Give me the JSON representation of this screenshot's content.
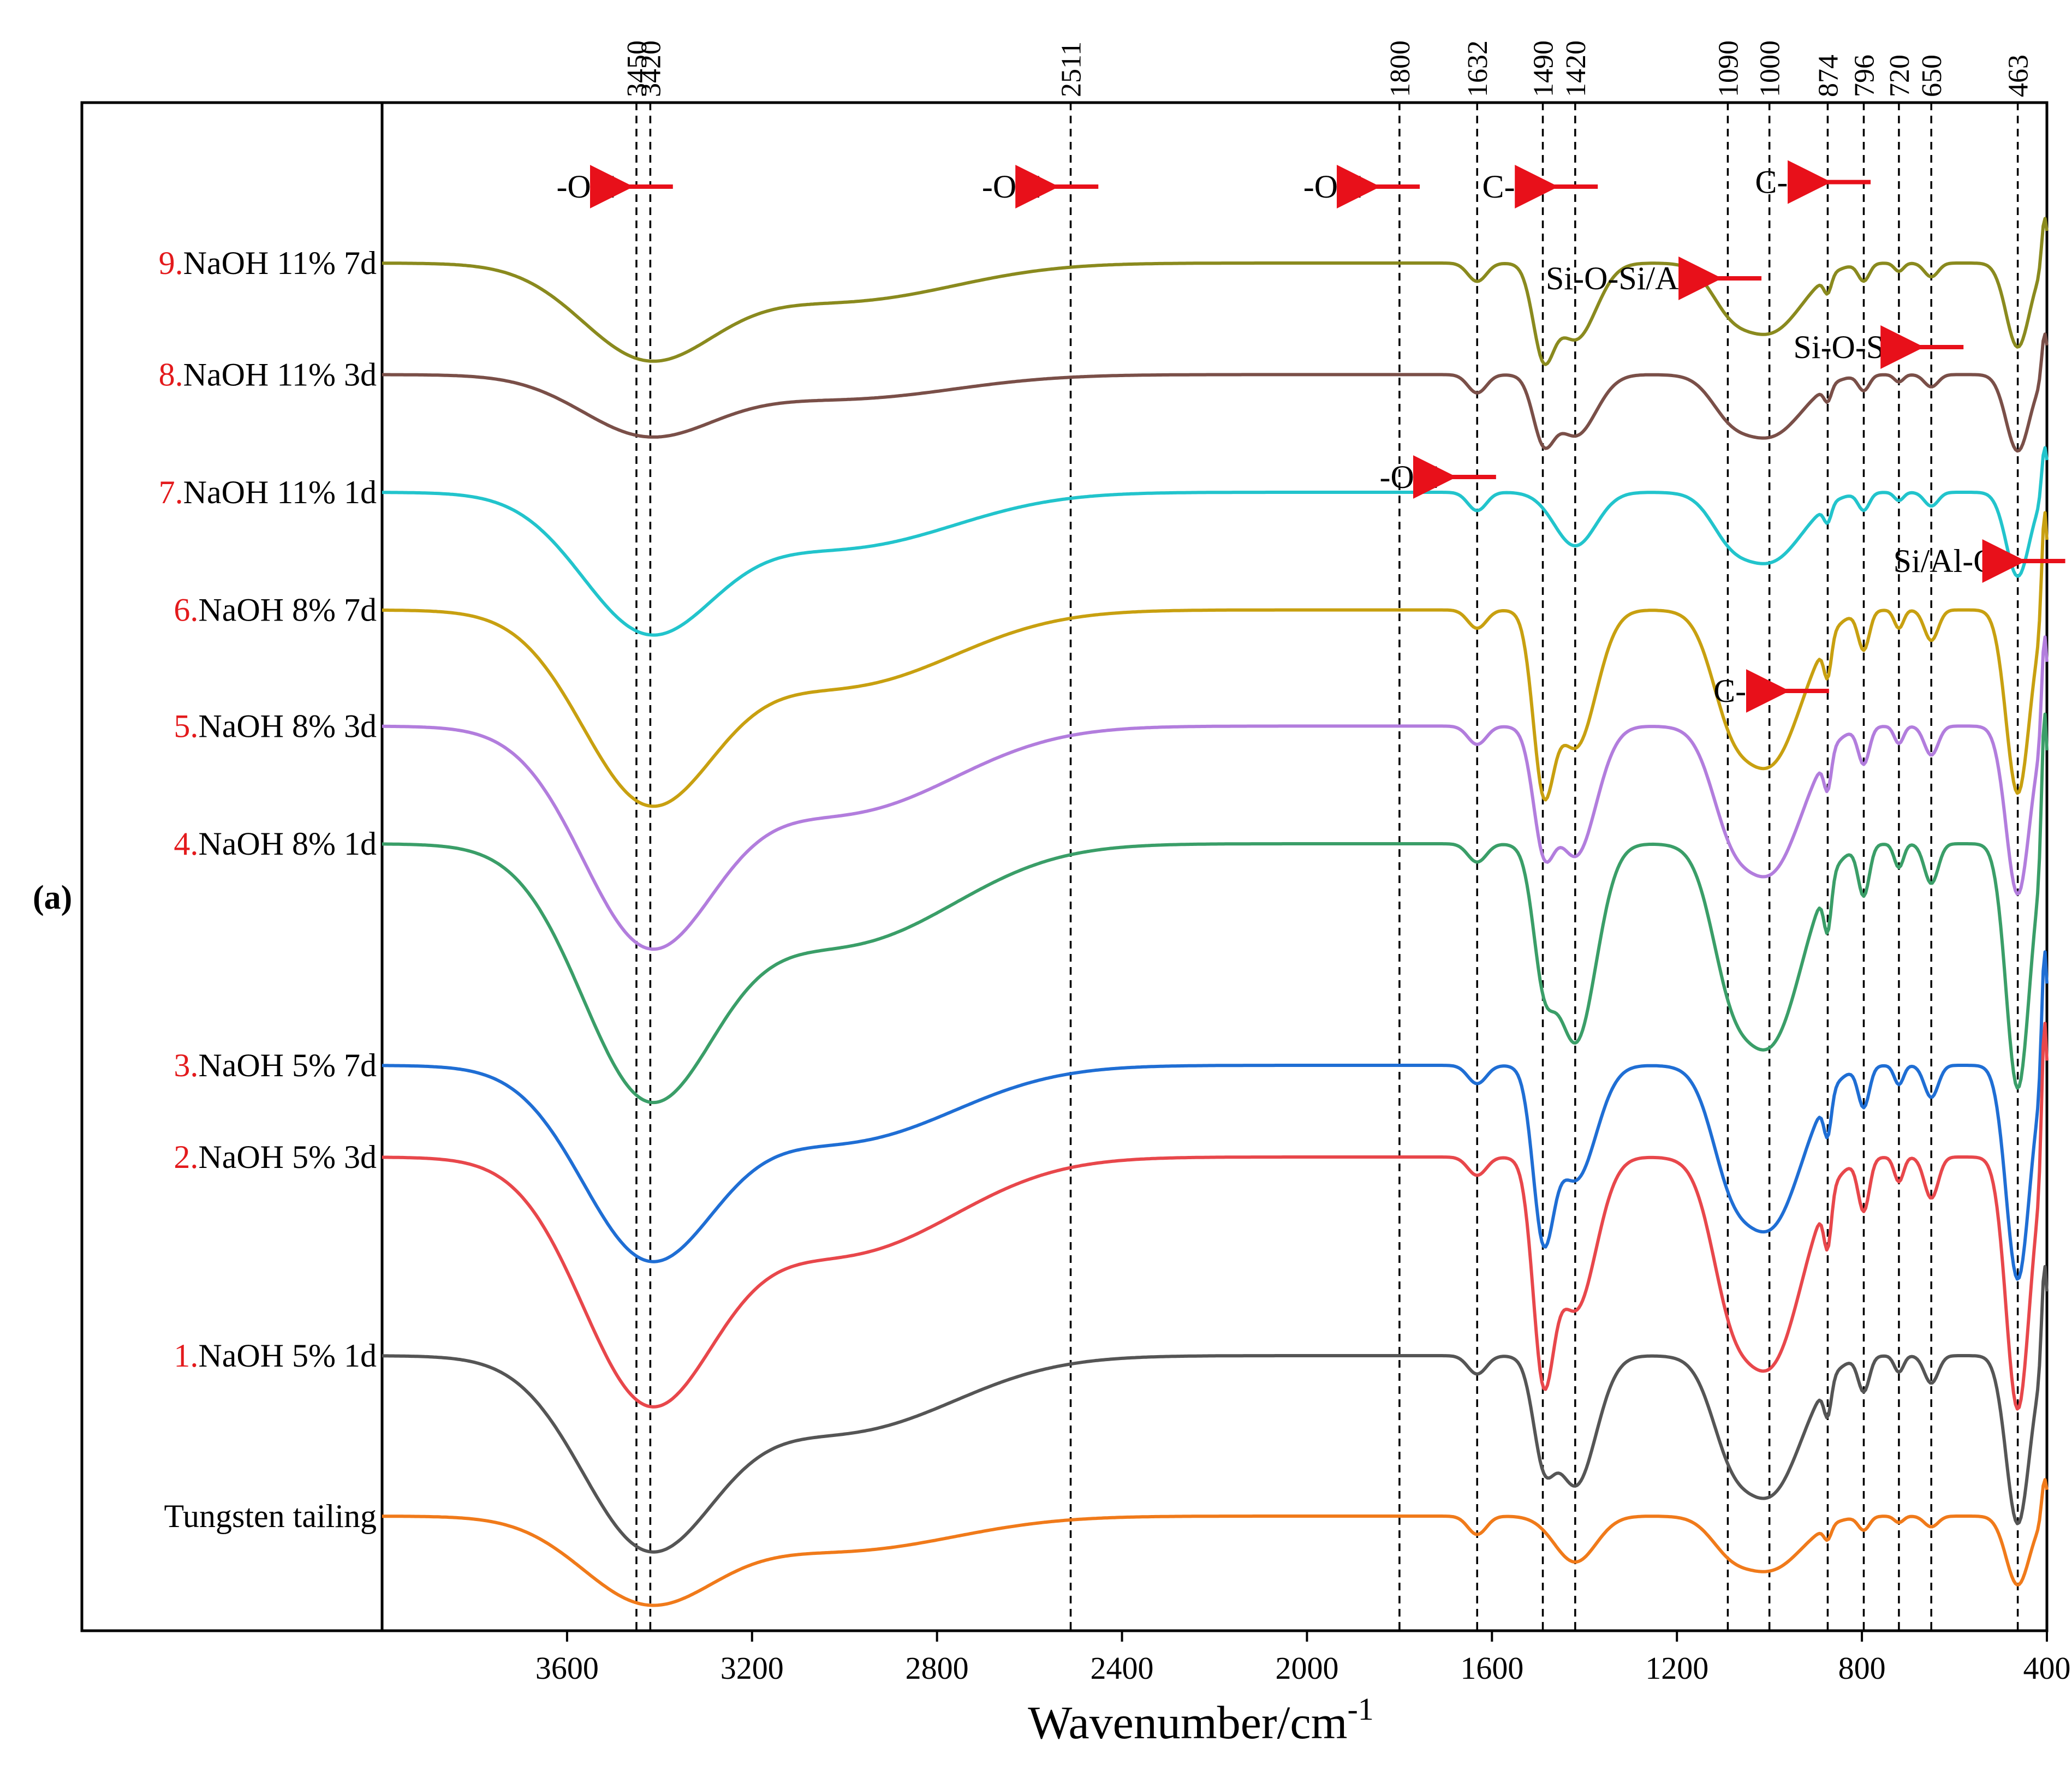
{
  "panel_label": "(a)",
  "chart_data": {
    "type": "line",
    "title": "",
    "xlabel": "Wavenumber/cm",
    "xlabel_superscript": "-1",
    "ylabel": "",
    "xlim": [
      4000,
      400
    ],
    "x_ticks": [
      "3600",
      "3200",
      "2800",
      "2400",
      "2000",
      "1600",
      "1200",
      "800",
      "400"
    ],
    "x_tick_values": [
      3600,
      3200,
      2800,
      2400,
      2000,
      1600,
      1200,
      800,
      400
    ],
    "grid": false,
    "legend": "labels at left of each curve",
    "reference_lines": [
      {
        "value": 3450,
        "label": "3450"
      },
      {
        "value": 3420,
        "label": "3420"
      },
      {
        "value": 2511,
        "label": "2511"
      },
      {
        "value": 1800,
        "label": "1800"
      },
      {
        "value": 1632,
        "label": "1632"
      },
      {
        "value": 1490,
        "label": "1490"
      },
      {
        "value": 1420,
        "label": "1420"
      },
      {
        "value": 1090,
        "label": "1090"
      },
      {
        "value": 1000,
        "label": "1000"
      },
      {
        "value": 874,
        "label": "874"
      },
      {
        "value": 796,
        "label": "796"
      },
      {
        "value": 720,
        "label": "720"
      },
      {
        "value": 650,
        "label": "650"
      },
      {
        "value": 463,
        "label": "463"
      }
    ],
    "annotations": [
      {
        "text": "-OH",
        "x": 3560,
        "row": 0.945
      },
      {
        "text": "-OH",
        "x": 2640,
        "row": 0.945
      },
      {
        "text": "-OH",
        "x": 1945,
        "row": 0.945
      },
      {
        "text": "C-O",
        "x": 1560,
        "row": 0.945
      },
      {
        "text": "C-O",
        "x": 970,
        "row": 0.948
      },
      {
        "text": "Si-O-Si/Al",
        "x": 1330,
        "row": 0.885
      },
      {
        "text": "Si-O-Si",
        "x": 840,
        "row": 0.84
      },
      {
        "text": "-OH",
        "x": 1780,
        "row": 0.755
      },
      {
        "text": "Si/Al-O",
        "x": 620,
        "row": 0.7
      },
      {
        "text": "C-O",
        "x": 1060,
        "row": 0.615
      }
    ],
    "series": [
      {
        "number": "9.",
        "name": "NaOH 11% 7d",
        "color": "#8a8a1e",
        "label_color": "#e31a1c",
        "baseline": 0.895,
        "depths": {
          "oh": 0.055,
          "band1490": 0.05,
          "band1420": 0.05,
          "band1000": 0.045,
          "band463": 0.055
        }
      },
      {
        "number": "8.",
        "name": "NaOH 11% 3d",
        "color": "#7a4f48",
        "label_color": "#e31a1c",
        "baseline": 0.822,
        "depths": {
          "oh": 0.035,
          "band1490": 0.035,
          "band1420": 0.04,
          "band1000": 0.04,
          "band463": 0.05
        }
      },
      {
        "number": "7.",
        "name": "NaOH 11% 1d",
        "color": "#22c4cc",
        "label_color": "#e31a1c",
        "baseline": 0.745,
        "depths": {
          "oh": 0.08,
          "band1490": 0.0,
          "band1420": 0.035,
          "band1000": 0.045,
          "band463": 0.055
        }
      },
      {
        "number": "6.",
        "name": "NaOH 8% 7d",
        "color": "#c8a010",
        "label_color": "#e31a1c",
        "baseline": 0.668,
        "depths": {
          "oh": 0.11,
          "band1490": 0.095,
          "band1420": 0.09,
          "band1000": 0.1,
          "band463": 0.12
        }
      },
      {
        "number": "5.",
        "name": "NaOH 8% 3d",
        "color": "#b27ddd",
        "label_color": "#e31a1c",
        "baseline": 0.592,
        "depths": {
          "oh": 0.125,
          "band1490": 0.06,
          "band1420": 0.085,
          "band1000": 0.095,
          "band463": 0.11
        }
      },
      {
        "number": "4.",
        "name": "NaOH 8% 1d",
        "color": "#3a9e68",
        "label_color": "#e31a1c",
        "baseline": 0.515,
        "depths": {
          "oh": 0.145,
          "band1490": 0.06,
          "band1420": 0.13,
          "band1000": 0.13,
          "band463": 0.16
        }
      },
      {
        "number": "3.",
        "name": "NaOH 5% 7d",
        "color": "#1f6ed4",
        "label_color": "#e31a1c",
        "baseline": 0.37,
        "depths": {
          "oh": 0.11,
          "band1490": 0.095,
          "band1420": 0.075,
          "band1000": 0.105,
          "band463": 0.14
        }
      },
      {
        "number": "2.",
        "name": "NaOH 5% 3d",
        "color": "#e8474b",
        "label_color": "#e31a1c",
        "baseline": 0.31,
        "depths": {
          "oh": 0.14,
          "band1490": 0.12,
          "band1420": 0.1,
          "band1000": 0.135,
          "band463": 0.165
        }
      },
      {
        "number": "1.",
        "name": "NaOH 5% 1d",
        "color": "#555555",
        "label_color": "#e31a1c",
        "baseline": 0.18,
        "depths": {
          "oh": 0.11,
          "band1490": 0.05,
          "band1420": 0.085,
          "band1000": 0.09,
          "band463": 0.11
        }
      },
      {
        "number": "",
        "name": "Tungsten tailing",
        "color": "#f07a1a",
        "label_color": "#000000",
        "baseline": 0.075,
        "depths": {
          "oh": 0.05,
          "band1490": 0.0,
          "band1420": 0.03,
          "band1000": 0.035,
          "band463": 0.045
        }
      }
    ]
  }
}
